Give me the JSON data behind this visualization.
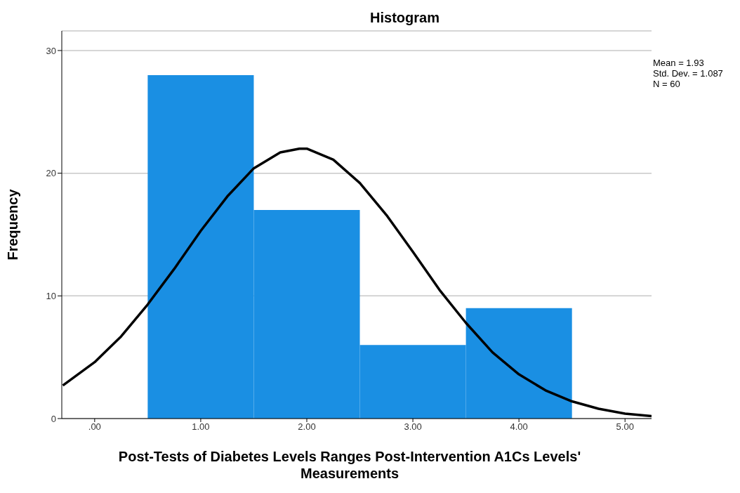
{
  "chart_data": {
    "type": "histogram",
    "title": "Histogram",
    "xlabel": "Post-Tests of Diabetes Levels Ranges Post-Intervention A1Cs Levels' Measurements",
    "ylabel": "Frequency",
    "bins": [
      0.5,
      1.5,
      2.5,
      3.5,
      4.5
    ],
    "values": [
      28,
      17,
      6,
      9
    ],
    "color": "#1a8fe3",
    "series": [
      {
        "type": "line",
        "color": "#000000",
        "x": [
          -0.3,
          0,
          0.25,
          0.5,
          0.75,
          1,
          1.25,
          1.5,
          1.75,
          1.93,
          2,
          2.25,
          2.5,
          2.75,
          3,
          3.25,
          3.5,
          3.75,
          4,
          4.25,
          4.5,
          4.75,
          5,
          5.25
        ],
        "values": [
          2.7,
          4.6,
          6.7,
          9.3,
          12.2,
          15.3,
          18.1,
          20.4,
          21.7,
          22,
          22,
          21.1,
          19.2,
          16.6,
          13.6,
          10.5,
          7.8,
          5.4,
          3.6,
          2.3,
          1.4,
          0.8,
          0.4,
          0.2
        ]
      }
    ],
    "xlim": [
      -0.31,
      5.25
    ],
    "xticks": [
      {
        "value": 0,
        "label": ".00"
      },
      {
        "value": 1,
        "label": "1.00"
      },
      {
        "value": 2,
        "label": "2.00"
      },
      {
        "value": 3,
        "label": "3.00"
      },
      {
        "value": 4,
        "label": "4.00"
      },
      {
        "value": 5,
        "label": "5.00"
      }
    ],
    "ylim": [
      0,
      31.6
    ],
    "yticks": [
      0,
      10,
      20,
      30
    ],
    "grid": "y",
    "marker": "none",
    "line_style": "solid",
    "annotations": [
      "Mean = 1.93",
      "Std. Dev. = 1.087",
      "N = 60"
    ]
  }
}
